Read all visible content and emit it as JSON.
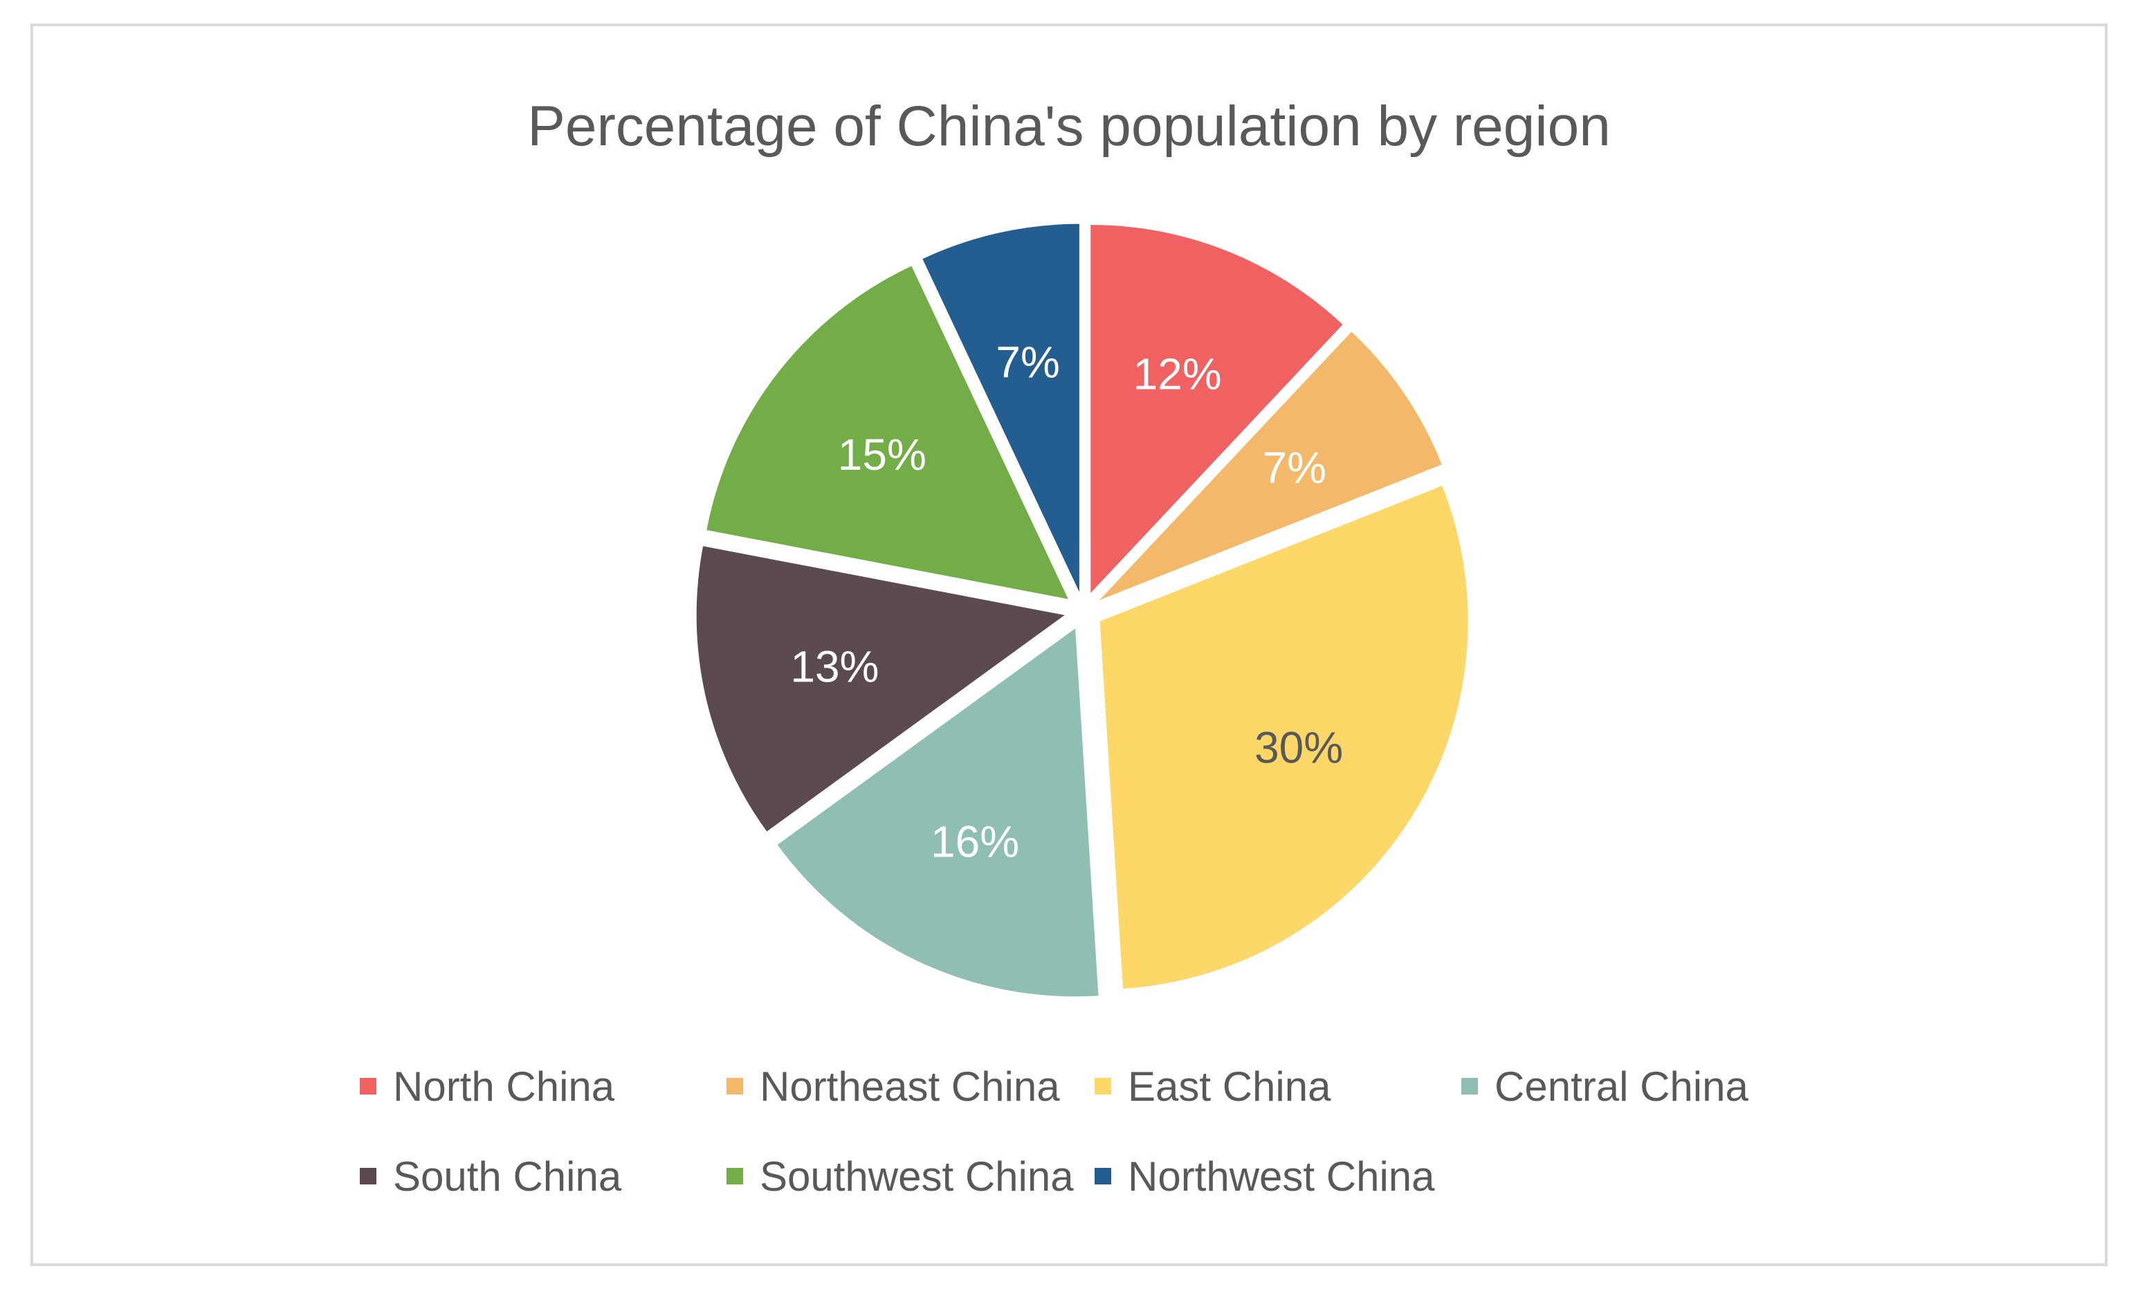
{
  "chart_data": {
    "type": "pie",
    "title": "Percentage of China's population by region",
    "categories": [
      "North China",
      "Northeast China",
      "East China",
      "Central China",
      "South China",
      "Southwest China",
      "Northwest China"
    ],
    "values": [
      12,
      7,
      30,
      16,
      13,
      15,
      7
    ],
    "data_labels": [
      "12%",
      "7%",
      "30%",
      "16%",
      "13%",
      "15%",
      "7%"
    ],
    "colors": [
      "#f06262",
      "#f4b86a",
      "#fdd868",
      "#8fbfb2",
      "#5b4a50",
      "#72ad48",
      "#245d8f"
    ],
    "label_colors": [
      "#ffffff",
      "#ffffff",
      "#595959",
      "#ffffff",
      "#ffffff",
      "#ffffff",
      "#ffffff"
    ],
    "exploded": true,
    "legend_position": "bottom"
  }
}
